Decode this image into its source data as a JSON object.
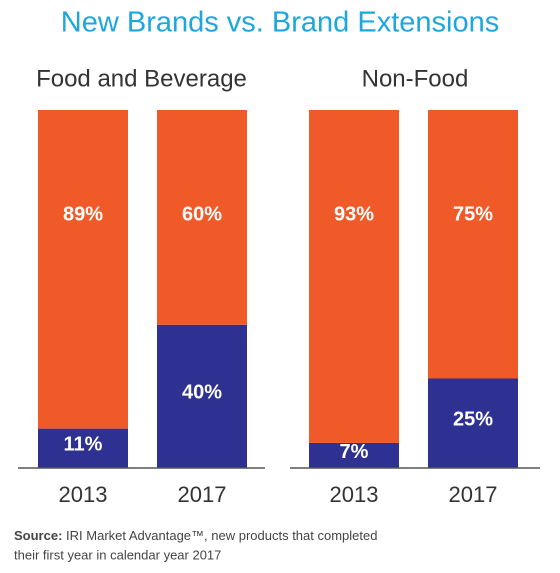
{
  "title": "New Brands vs. Brand Extensions",
  "source_label": "Source:",
  "source_lines": [
    "IRI Market Advantage™, new products that completed",
    "their first year in calendar year 2017"
  ],
  "chart_data": [
    {
      "type": "bar",
      "stacked": true,
      "subtitle": "Food and Beverage",
      "categories": [
        "2013",
        "2017"
      ],
      "ylim": [
        0,
        100
      ],
      "series": [
        {
          "color": "#2e3192",
          "values": [
            11,
            40
          ],
          "value_labels": [
            "11%",
            "40%"
          ]
        },
        {
          "color": "#f05a28",
          "values": [
            89,
            60
          ],
          "value_labels": [
            "89%",
            "60%"
          ]
        }
      ]
    },
    {
      "type": "bar",
      "stacked": true,
      "subtitle": "Non-Food",
      "categories": [
        "2013",
        "2017"
      ],
      "ylim": [
        0,
        100
      ],
      "series": [
        {
          "color": "#2e3192",
          "values": [
            7,
            25
          ],
          "value_labels": [
            "7%",
            "25%"
          ]
        },
        {
          "color": "#f05a28",
          "values": [
            93,
            75
          ],
          "value_labels": [
            "93%",
            "75%"
          ]
        }
      ]
    }
  ]
}
